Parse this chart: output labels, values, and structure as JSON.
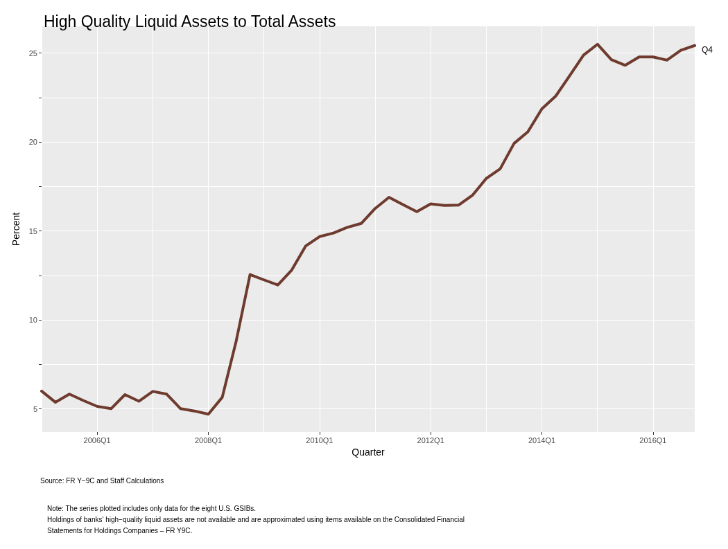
{
  "chart_data": {
    "type": "line",
    "title": "High Quality Liquid Assets to Total Assets",
    "xlabel": "Quarter",
    "ylabel": "Percent",
    "categories": [
      null,
      null,
      null,
      null,
      "2006Q1",
      null,
      null,
      null,
      null,
      null,
      null,
      null,
      "2008Q1",
      null,
      null,
      null,
      null,
      null,
      null,
      null,
      "2010Q1",
      null,
      null,
      null,
      null,
      null,
      null,
      null,
      "2012Q1",
      null,
      null,
      null,
      null,
      null,
      null,
      null,
      "2014Q1",
      null,
      null,
      null,
      null,
      null,
      null,
      null,
      "2016Q1",
      null,
      null,
      null
    ],
    "series": [
      {
        "color": "#6e3b2e",
        "values": [
          6.0,
          5.37,
          5.83,
          5.47,
          5.14,
          5.01,
          5.8,
          5.43,
          5.98,
          5.83,
          5.01,
          4.88,
          4.7,
          5.65,
          8.8,
          12.55,
          12.25,
          11.96,
          12.8,
          14.15,
          14.68,
          14.88,
          15.2,
          15.42,
          16.26,
          16.89,
          16.48,
          16.08,
          16.52,
          16.43,
          16.45,
          17.0,
          17.95,
          18.49,
          19.92,
          20.58,
          21.86,
          22.58,
          23.72,
          24.88,
          25.49,
          24.63,
          24.31,
          24.78,
          24.78,
          24.6,
          25.15,
          25.42
        ]
      }
    ],
    "ylim": [
      3.7,
      26.5
    ],
    "yticks": [
      5,
      {
        "value": 7.5,
        "label": null
      },
      10,
      {
        "value": 12.5,
        "label": null
      },
      15,
      {
        "value": 17.5,
        "label": null
      },
      20,
      {
        "value": 22.5,
        "label": null
      },
      25
    ],
    "grid": true,
    "marker": "none",
    "line_style": "solid",
    "annotations": [
      "Q4",
      "Source: FR Y−9C and Staff Calculations",
      "Note: The series plotted includes only data for the eight U.S. GSIBs.",
      "Holdings of banks' high−quality liquid assets are not available and are approximated using items available on the Consolidated Financial Statements for Holdings Companies – FR Y9C."
    ]
  }
}
